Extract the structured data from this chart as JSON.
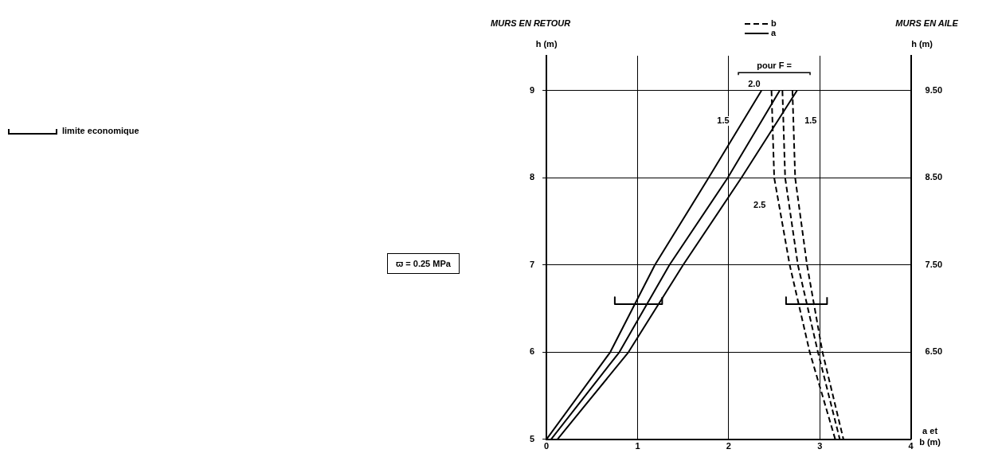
{
  "chart_data": {
    "type": "line",
    "title": "MURS EN RETOUR",
    "ylabel": "h (m)",
    "y2label": "h (m)",
    "xlabel": "a et b (m)",
    "annotations": [
      "MURS EN AILE",
      "pour F =",
      "ϖ = 0.25 MPa",
      "1.5",
      "2.0",
      "2.5",
      "1.5"
    ],
    "xlim": [
      0,
      4
    ],
    "xticks": [
      0,
      1,
      2,
      3,
      4
    ],
    "ylim": [
      5,
      9.4
    ],
    "yticks": [
      5,
      6,
      7,
      8,
      9
    ],
    "y2lim": [
      5.5,
      9.9
    ],
    "y2ticks": [
      {
        "value": 6.5,
        "label": "6.50"
      },
      {
        "value": 7.5,
        "label": "7.50"
      },
      {
        "value": 8.5,
        "label": "8.50"
      },
      {
        "value": 9.5,
        "label": "9.50"
      }
    ],
    "grid": true,
    "legend": "top",
    "line_style": "solid",
    "marker": "none",
    "series": [
      {
        "name": "b",
        "color": "#000000",
        "line_style": "dashed",
        "x": [
          2.47,
          2.5,
          2.67,
          2.89,
          3.17
        ],
        "values": [
          9,
          8,
          7,
          6,
          5
        ]
      },
      {
        "color": "#000000",
        "line_style": "dashed",
        "x": [
          2.59,
          2.62,
          2.76,
          2.98,
          3.22
        ],
        "values": [
          9,
          8,
          7,
          6,
          5
        ]
      },
      {
        "color": "#000000",
        "line_style": "dashed",
        "x": [
          2.7,
          2.73,
          2.86,
          3.03,
          3.26
        ],
        "values": [
          9,
          8,
          7,
          6,
          5
        ]
      },
      {
        "name": "a",
        "color": "#000000",
        "x": [
          0,
          0.7,
          1.19,
          1.78,
          2.36
        ],
        "values": [
          5,
          6,
          7,
          8,
          9
        ]
      },
      {
        "color": "#000000",
        "x": [
          0.05,
          0.8,
          1.35,
          1.99,
          2.56
        ],
        "values": [
          5,
          6,
          7,
          8,
          9
        ]
      },
      {
        "color": "#000000",
        "x": [
          0.12,
          0.9,
          1.5,
          2.14,
          2.75
        ],
        "values": [
          5,
          6,
          7,
          8,
          9
        ]
      },
      {
        "name": "limite economique",
        "color": "#000000",
        "x": [
          0.75,
          0.75,
          1.27,
          1.27,
          null,
          2.63,
          2.63,
          3.08,
          3.08
        ],
        "values": [
          6.63,
          6.55,
          6.55,
          6.63,
          null,
          6.63,
          6.55,
          6.55,
          6.63
        ]
      }
    ]
  }
}
